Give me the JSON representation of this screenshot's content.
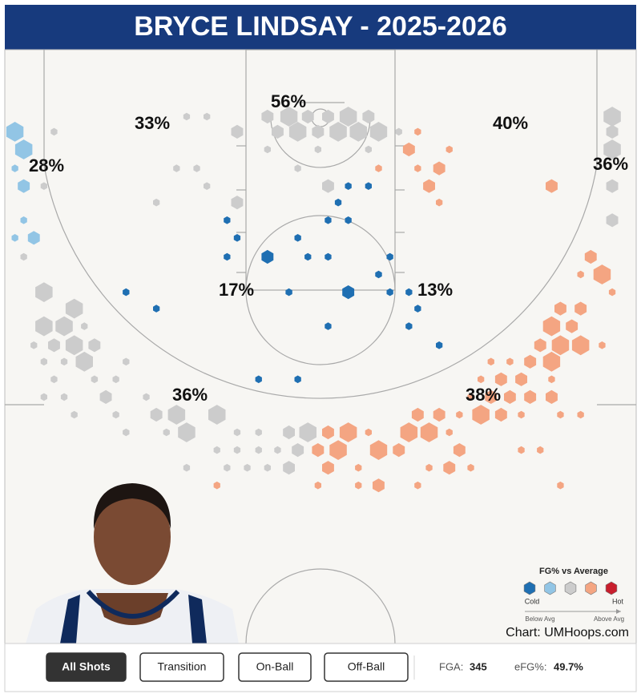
{
  "title": "BRYCE LINDSAY - 2025-2026",
  "zone_labels": [
    "56%",
    "33%",
    "40%",
    "28%",
    "36%",
    "17%",
    "13%",
    "36%",
    "38%"
  ],
  "legend": {
    "title": "FG% vs Average",
    "low": "Cold",
    "high": "Hot",
    "below": "Below Avg",
    "above": "Above Avg",
    "colors": [
      "#1f6fb2",
      "#92c5e5",
      "#cccccc",
      "#f4a582",
      "#c81e2d"
    ]
  },
  "credit": "Chart: UMHoops.com",
  "filters": [
    "All Shots",
    "Transition",
    "On-Ball",
    "Off-Ball"
  ],
  "stats": [
    {
      "label": "FGA:",
      "value": "345"
    },
    {
      "label": "eFG%:",
      "value": "49.7%"
    }
  ],
  "hexes": [
    [
      -24.2,
      6.5,
      3,
      1
    ],
    [
      -23.5,
      7.9,
      3,
      1
    ],
    [
      -24.2,
      9.4,
      1,
      1
    ],
    [
      -23.5,
      10.8,
      2,
      1
    ],
    [
      -23.5,
      13.5,
      1,
      1
    ],
    [
      -24.2,
      14.9,
      1,
      1
    ],
    [
      -22.7,
      14.9,
      2,
      1
    ],
    [
      -23.5,
      16.4,
      1,
      2
    ],
    [
      -21.1,
      6.5,
      1,
      2
    ],
    [
      -21.9,
      10.8,
      1,
      2
    ],
    [
      -10.6,
      5.3,
      1,
      2
    ],
    [
      -9.0,
      5.3,
      1,
      2
    ],
    [
      -11.4,
      9.4,
      1,
      2
    ],
    [
      -9.8,
      9.4,
      1,
      2
    ],
    [
      -9.0,
      10.8,
      1,
      2
    ],
    [
      -13.0,
      12.1,
      1,
      2
    ],
    [
      -6.6,
      6.5,
      2,
      2
    ],
    [
      -6.6,
      12.1,
      2,
      2
    ],
    [
      -4.2,
      5.3,
      2,
      2
    ],
    [
      -2.5,
      5.3,
      3,
      2
    ],
    [
      -1.0,
      5.3,
      2,
      2
    ],
    [
      0.6,
      5.3,
      2,
      2
    ],
    [
      2.2,
      5.3,
      3,
      2
    ],
    [
      3.8,
      5.3,
      2,
      2
    ],
    [
      -3.4,
      6.5,
      2,
      2
    ],
    [
      -1.8,
      6.5,
      3,
      2
    ],
    [
      -0.2,
      6.5,
      2,
      2
    ],
    [
      1.4,
      6.5,
      3,
      2
    ],
    [
      3.0,
      6.5,
      3,
      2
    ],
    [
      4.6,
      6.5,
      3,
      2
    ],
    [
      -4.2,
      7.9,
      1,
      2
    ],
    [
      -1.8,
      9.4,
      1,
      2
    ],
    [
      0.6,
      10.8,
      2,
      2
    ],
    [
      3.8,
      7.9,
      1,
      2
    ],
    [
      -0.2,
      7.9,
      1,
      2
    ],
    [
      7.7,
      6.5,
      1,
      3
    ],
    [
      7.0,
      7.9,
      2,
      3
    ],
    [
      10.2,
      7.9,
      1,
      3
    ],
    [
      4.6,
      9.4,
      1,
      3
    ],
    [
      7.7,
      9.4,
      1,
      3
    ],
    [
      9.4,
      9.4,
      2,
      3
    ],
    [
      8.6,
      10.8,
      2,
      3
    ],
    [
      9.4,
      12.1,
      1,
      3
    ],
    [
      18.3,
      10.8,
      2,
      3
    ],
    [
      6.2,
      6.5,
      1,
      2
    ],
    [
      23.1,
      5.3,
      3,
      2
    ],
    [
      23.1,
      6.5,
      2,
      2
    ],
    [
      23.1,
      7.9,
      3,
      2
    ],
    [
      23.1,
      10.8,
      2,
      2
    ],
    [
      23.1,
      13.5,
      2,
      2
    ],
    [
      2.2,
      10.8,
      1,
      0
    ],
    [
      3.8,
      10.8,
      1,
      0
    ],
    [
      1.4,
      12.1,
      1,
      0
    ],
    [
      0.6,
      13.5,
      1,
      0
    ],
    [
      2.2,
      13.5,
      1,
      0
    ],
    [
      -7.4,
      13.5,
      1,
      0
    ],
    [
      -6.6,
      14.9,
      1,
      0
    ],
    [
      -1.8,
      14.9,
      1,
      0
    ],
    [
      -4.2,
      16.4,
      2,
      0
    ],
    [
      -7.4,
      16.4,
      1,
      0
    ],
    [
      -1.0,
      16.4,
      1,
      0
    ],
    [
      0.6,
      16.4,
      1,
      0
    ],
    [
      5.5,
      16.4,
      1,
      0
    ],
    [
      4.6,
      17.8,
      1,
      0
    ],
    [
      -2.5,
      19.2,
      1,
      0
    ],
    [
      2.2,
      19.2,
      2,
      0
    ],
    [
      5.5,
      19.2,
      1,
      0
    ],
    [
      7.0,
      19.2,
      1,
      0
    ],
    [
      7.7,
      20.5,
      1,
      0
    ],
    [
      7.0,
      21.9,
      1,
      0
    ],
    [
      0.6,
      21.9,
      1,
      0
    ],
    [
      9.4,
      23.4,
      1,
      0
    ],
    [
      -15.4,
      19.2,
      1,
      0
    ],
    [
      -13.0,
      20.5,
      1,
      0
    ],
    [
      -4.9,
      26.1,
      1,
      0
    ],
    [
      -1.8,
      26.1,
      1,
      0
    ],
    [
      -21.9,
      19.2,
      3,
      2
    ],
    [
      -19.5,
      20.5,
      3,
      2
    ],
    [
      -21.9,
      21.9,
      3,
      2
    ],
    [
      -20.3,
      21.9,
      3,
      2
    ],
    [
      -18.7,
      21.9,
      1,
      2
    ],
    [
      -21.1,
      23.4,
      2,
      2
    ],
    [
      -19.5,
      23.4,
      3,
      2
    ],
    [
      -17.9,
      23.4,
      2,
      2
    ],
    [
      -22.7,
      23.4,
      1,
      2
    ],
    [
      -18.7,
      24.7,
      3,
      2
    ],
    [
      -20.3,
      24.7,
      1,
      2
    ],
    [
      -21.9,
      24.7,
      1,
      2
    ],
    [
      -15.4,
      24.7,
      1,
      2
    ],
    [
      -21.1,
      26.1,
      1,
      2
    ],
    [
      -17.9,
      26.1,
      1,
      2
    ],
    [
      -16.2,
      26.1,
      1,
      2
    ],
    [
      -21.9,
      27.5,
      1,
      2
    ],
    [
      -20.3,
      27.5,
      1,
      2
    ],
    [
      -17.0,
      27.5,
      2,
      2
    ],
    [
      -13.8,
      27.5,
      1,
      2
    ],
    [
      -19.5,
      28.9,
      1,
      2
    ],
    [
      -16.2,
      28.9,
      1,
      2
    ],
    [
      -13.0,
      28.9,
      2,
      2
    ],
    [
      -11.4,
      28.9,
      3,
      2
    ],
    [
      -8.2,
      28.9,
      3,
      2
    ],
    [
      -15.4,
      30.3,
      1,
      2
    ],
    [
      -12.2,
      30.3,
      1,
      2
    ],
    [
      -10.6,
      30.3,
      3,
      2
    ],
    [
      -6.6,
      30.3,
      1,
      2
    ],
    [
      -4.9,
      30.3,
      1,
      2
    ],
    [
      -2.5,
      30.3,
      2,
      2
    ],
    [
      -1.0,
      30.3,
      3,
      2
    ],
    [
      -8.2,
      31.7,
      1,
      2
    ],
    [
      -6.6,
      31.7,
      1,
      2
    ],
    [
      -4.9,
      31.7,
      1,
      2
    ],
    [
      -3.4,
      31.7,
      1,
      2
    ],
    [
      -1.8,
      31.7,
      2,
      2
    ],
    [
      -10.6,
      33.1,
      1,
      2
    ],
    [
      -7.4,
      33.1,
      1,
      2
    ],
    [
      -5.8,
      33.1,
      1,
      2
    ],
    [
      -4.2,
      33.1,
      1,
      2
    ],
    [
      -2.5,
      33.1,
      2,
      2
    ],
    [
      -8.2,
      34.5,
      1,
      3
    ],
    [
      21.4,
      16.4,
      2,
      3
    ],
    [
      22.3,
      17.8,
      3,
      3
    ],
    [
      20.6,
      17.8,
      1,
      3
    ],
    [
      23.1,
      19.2,
      1,
      3
    ],
    [
      19.0,
      20.5,
      2,
      3
    ],
    [
      20.6,
      20.5,
      2,
      3
    ],
    [
      18.3,
      21.9,
      3,
      3
    ],
    [
      19.9,
      21.9,
      2,
      3
    ],
    [
      17.4,
      23.4,
      2,
      3
    ],
    [
      19.0,
      23.4,
      3,
      3
    ],
    [
      20.6,
      23.4,
      3,
      3
    ],
    [
      22.3,
      23.4,
      1,
      3
    ],
    [
      18.3,
      24.7,
      3,
      3
    ],
    [
      16.6,
      24.7,
      2,
      3
    ],
    [
      15.0,
      24.7,
      1,
      3
    ],
    [
      13.5,
      24.7,
      1,
      3
    ],
    [
      14.3,
      26.1,
      2,
      3
    ],
    [
      15.9,
      26.1,
      2,
      3
    ],
    [
      12.7,
      26.1,
      1,
      3
    ],
    [
      18.3,
      26.1,
      1,
      3
    ],
    [
      13.5,
      27.5,
      2,
      3
    ],
    [
      15.0,
      27.5,
      2,
      3
    ],
    [
      16.6,
      27.5,
      2,
      3
    ],
    [
      18.3,
      27.5,
      2,
      3
    ],
    [
      11.9,
      27.5,
      1,
      3
    ],
    [
      11.0,
      28.9,
      1,
      3
    ],
    [
      12.7,
      28.9,
      3,
      3
    ],
    [
      14.3,
      28.9,
      2,
      3
    ],
    [
      15.9,
      28.9,
      1,
      3
    ],
    [
      19.0,
      28.9,
      1,
      3
    ],
    [
      20.6,
      28.9,
      1,
      3
    ],
    [
      7.7,
      28.9,
      2,
      3
    ],
    [
      9.4,
      28.9,
      2,
      3
    ],
    [
      0.6,
      30.3,
      2,
      3
    ],
    [
      2.2,
      30.3,
      3,
      3
    ],
    [
      3.8,
      30.3,
      1,
      3
    ],
    [
      7.0,
      30.3,
      3,
      3
    ],
    [
      8.6,
      30.3,
      3,
      3
    ],
    [
      10.2,
      30.3,
      1,
      3
    ],
    [
      -0.2,
      31.7,
      2,
      3
    ],
    [
      1.4,
      31.7,
      3,
      3
    ],
    [
      4.6,
      31.7,
      3,
      3
    ],
    [
      6.2,
      31.7,
      2,
      3
    ],
    [
      11.0,
      31.7,
      2,
      3
    ],
    [
      15.9,
      31.7,
      1,
      3
    ],
    [
      17.4,
      31.7,
      1,
      3
    ],
    [
      0.6,
      33.1,
      2,
      3
    ],
    [
      3.0,
      33.1,
      1,
      3
    ],
    [
      8.6,
      33.1,
      1,
      3
    ],
    [
      10.2,
      33.1,
      2,
      3
    ],
    [
      11.9,
      33.1,
      1,
      3
    ],
    [
      -0.2,
      34.5,
      1,
      3
    ],
    [
      3.0,
      34.5,
      1,
      3
    ],
    [
      4.6,
      34.5,
      2,
      3
    ],
    [
      7.7,
      34.5,
      1,
      3
    ],
    [
      19.0,
      34.5,
      1,
      3
    ]
  ]
}
